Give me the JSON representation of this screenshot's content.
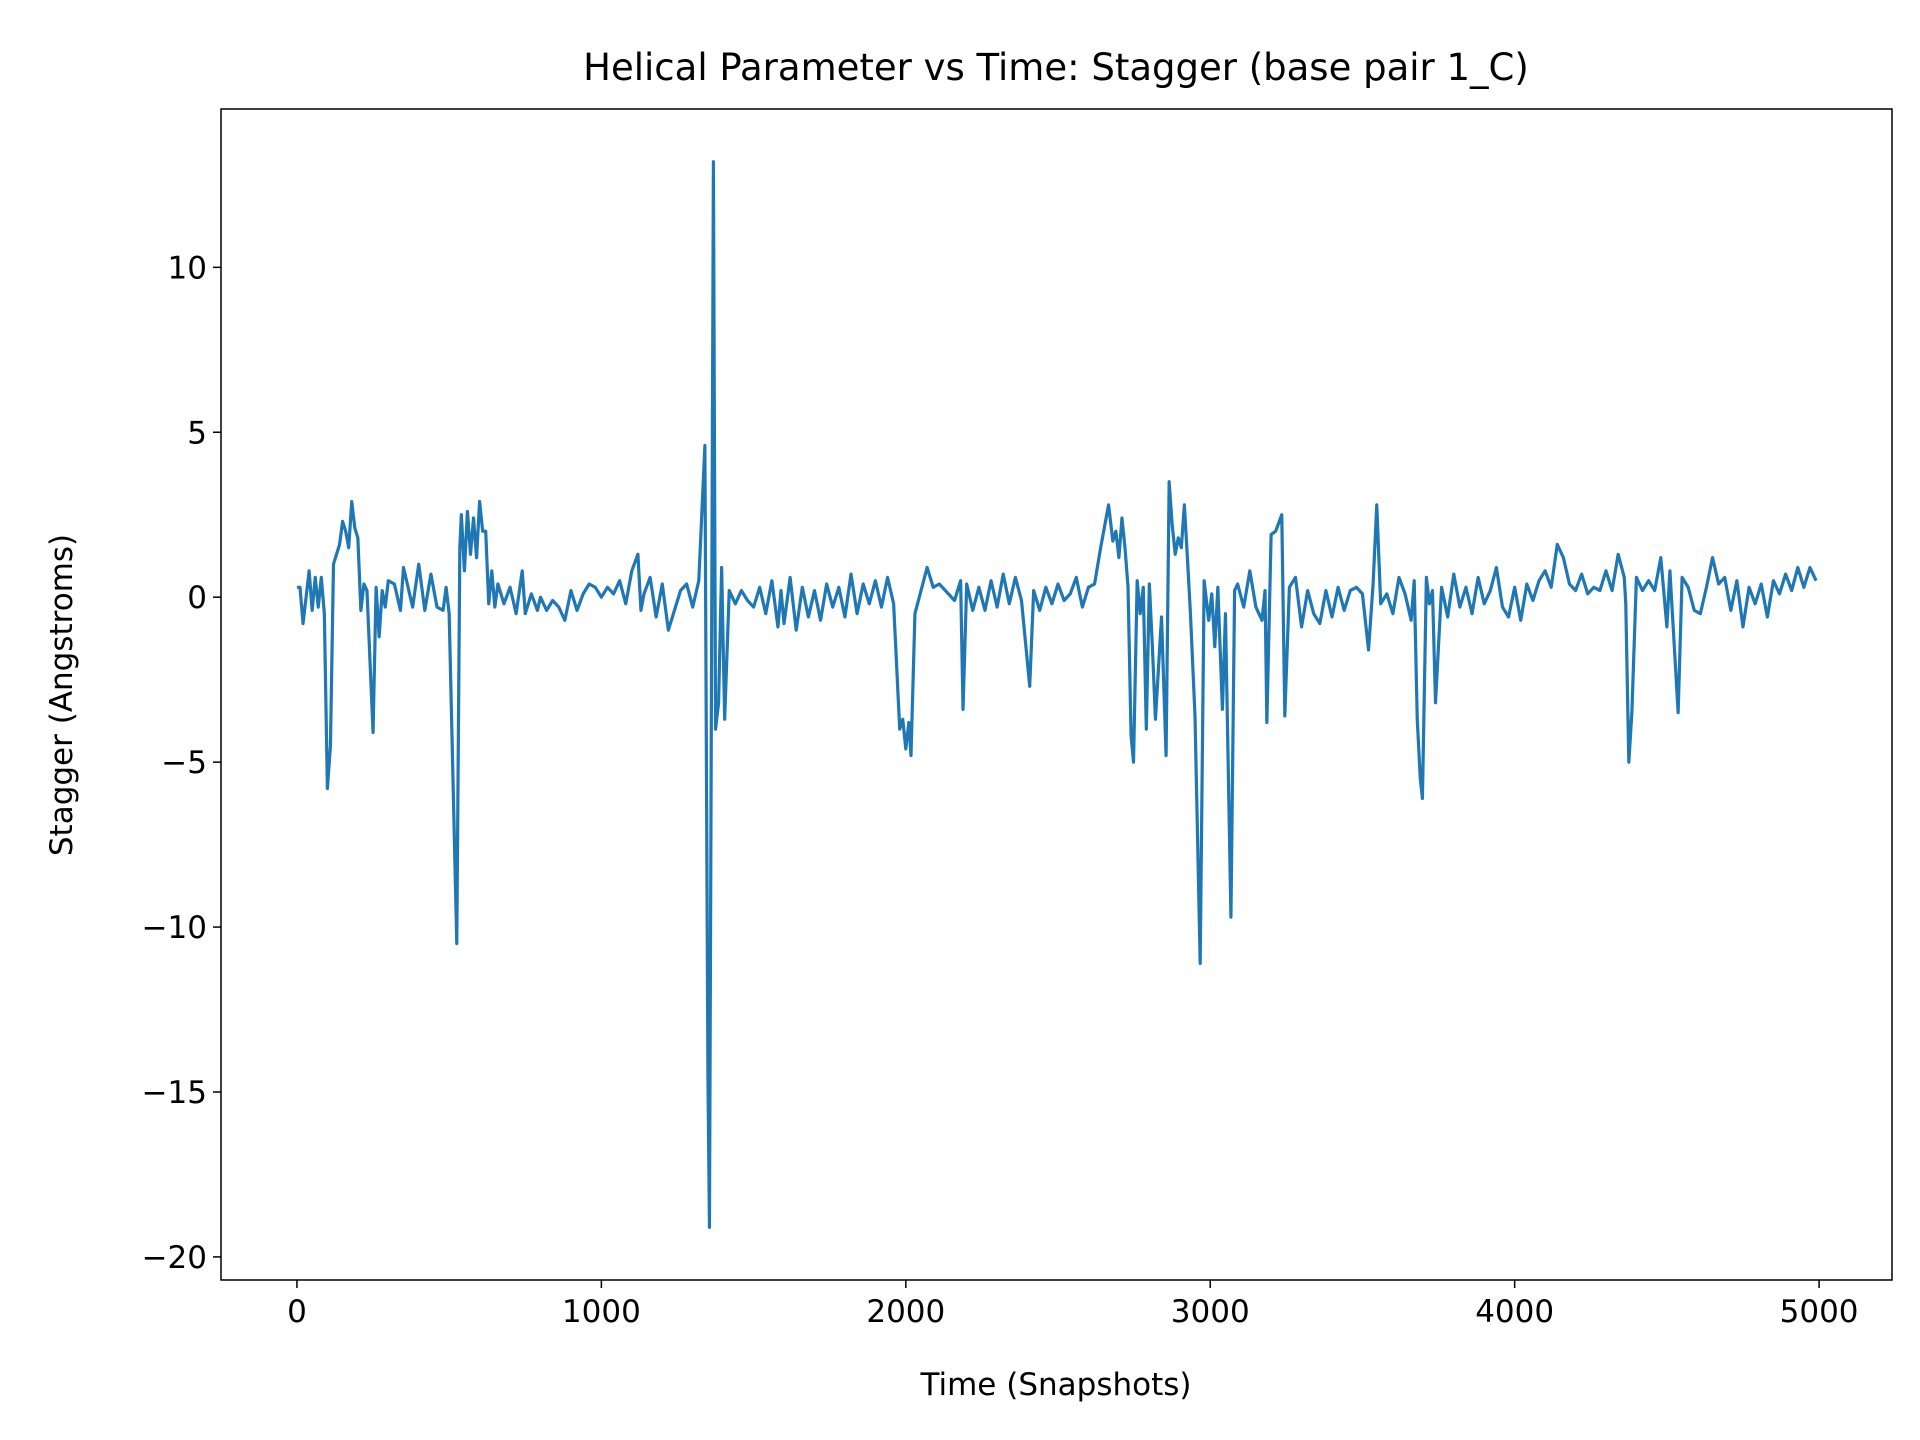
{
  "chart_data": {
    "type": "line",
    "title": "Helical Parameter vs Time: Stagger (base pair  1_C)",
    "x_label": "Time (Snapshots)",
    "y_label": "Stagger (Angstroms)",
    "color": "#1f77b4",
    "xlim": [
      -249.5,
      5239.5
    ],
    "ylim": [
      -20.7,
      14.8
    ],
    "xticks": [
      0,
      1000,
      2000,
      3000,
      4000,
      5000
    ],
    "yticks": [
      {
        "value": -20,
        "label": "−20"
      },
      {
        "value": -15,
        "label": "−15"
      },
      {
        "value": -10,
        "label": "−10"
      },
      {
        "value": -5,
        "label": "−5"
      },
      0,
      5,
      10
    ],
    "x": [
      0,
      10,
      20,
      30,
      40,
      50,
      60,
      70,
      80,
      90,
      100,
      110,
      120,
      140,
      150,
      160,
      170,
      180,
      190,
      200,
      210,
      220,
      230,
      250,
      260,
      270,
      280,
      290,
      300,
      320,
      340,
      350,
      360,
      380,
      400,
      420,
      440,
      460,
      480,
      490,
      500,
      525,
      535,
      540,
      550,
      560,
      570,
      580,
      590,
      600,
      610,
      620,
      630,
      640,
      650,
      660,
      680,
      700,
      720,
      740,
      750,
      770,
      790,
      800,
      820,
      840,
      860,
      880,
      900,
      920,
      940,
      960,
      980,
      1000,
      1020,
      1040,
      1060,
      1080,
      1100,
      1120,
      1130,
      1140,
      1160,
      1180,
      1200,
      1220,
      1240,
      1260,
      1280,
      1300,
      1320,
      1340,
      1350,
      1355,
      1368,
      1375,
      1385,
      1395,
      1405,
      1420,
      1440,
      1460,
      1480,
      1500,
      1520,
      1540,
      1560,
      1580,
      1590,
      1600,
      1620,
      1640,
      1660,
      1680,
      1700,
      1720,
      1740,
      1760,
      1780,
      1800,
      1820,
      1840,
      1860,
      1880,
      1900,
      1920,
      1940,
      1960,
      1980,
      1990,
      2000,
      2010,
      2017,
      2030,
      2050,
      2070,
      2090,
      2110,
      2130,
      2160,
      2180,
      2188,
      2200,
      2220,
      2240,
      2260,
      2280,
      2300,
      2320,
      2340,
      2360,
      2380,
      2407,
      2420,
      2440,
      2460,
      2480,
      2500,
      2520,
      2540,
      2560,
      2580,
      2600,
      2620,
      2640,
      2666,
      2680,
      2690,
      2700,
      2710,
      2720,
      2730,
      2740,
      2748,
      2760,
      2770,
      2780,
      2790,
      2800,
      2810,
      2820,
      2840,
      2855,
      2865,
      2875,
      2885,
      2895,
      2905,
      2915,
      2925,
      2935,
      2950,
      2967,
      2980,
      2995,
      3005,
      3015,
      3025,
      3040,
      3050,
      3068,
      3080,
      3090,
      3110,
      3130,
      3150,
      3170,
      3180,
      3186,
      3200,
      3215,
      3235,
      3245,
      3260,
      3280,
      3300,
      3320,
      3340,
      3360,
      3380,
      3400,
      3420,
      3440,
      3460,
      3480,
      3500,
      3520,
      3535,
      3547,
      3560,
      3580,
      3600,
      3620,
      3640,
      3660,
      3670,
      3680,
      3690,
      3697,
      3710,
      3720,
      3730,
      3740,
      3760,
      3780,
      3800,
      3820,
      3840,
      3860,
      3880,
      3900,
      3920,
      3940,
      3960,
      3980,
      4000,
      4020,
      4040,
      4060,
      4080,
      4100,
      4120,
      4140,
      4160,
      4180,
      4200,
      4220,
      4240,
      4260,
      4280,
      4300,
      4320,
      4340,
      4360,
      4365,
      4375,
      4385,
      4400,
      4420,
      4440,
      4460,
      4480,
      4500,
      4510,
      4537,
      4550,
      4570,
      4590,
      4610,
      4630,
      4650,
      4670,
      4690,
      4710,
      4730,
      4750,
      4770,
      4790,
      4810,
      4830,
      4850,
      4870,
      4890,
      4910,
      4930,
      4950,
      4970,
      4990
    ],
    "values": [
      0.3,
      0.3,
      -0.8,
      0,
      0.8,
      -0.4,
      0.6,
      -0.3,
      0.6,
      -0.5,
      -5.8,
      -4.5,
      1.0,
      1.6,
      2.3,
      2.0,
      1.5,
      2.9,
      2.1,
      1.8,
      -0.4,
      0.4,
      0.2,
      -4.1,
      0.3,
      -1.2,
      0.2,
      -0.3,
      0.5,
      0.4,
      -0.4,
      0.9,
      0.5,
      -0.3,
      1.0,
      -0.4,
      0.7,
      -0.3,
      -0.4,
      0.3,
      -0.5,
      -10.5,
      1.5,
      2.5,
      0.8,
      2.6,
      1.3,
      2.4,
      1.2,
      2.9,
      2.0,
      2.0,
      -0.2,
      0.8,
      -0.3,
      0.4,
      -0.2,
      0.3,
      -0.5,
      0.8,
      -0.5,
      0.1,
      -0.4,
      0,
      -0.4,
      -0.1,
      -0.3,
      -0.7,
      0.2,
      -0.4,
      0.1,
      0.4,
      0.3,
      0,
      0.3,
      0.1,
      0.5,
      -0.2,
      0.8,
      1.3,
      -0.4,
      0.1,
      0.6,
      -0.6,
      0.4,
      -1.0,
      -0.4,
      0.2,
      0.4,
      -0.3,
      0.5,
      4.6,
      -14.5,
      -19.1,
      13.2,
      -4,
      -3.2,
      0.9,
      -3.7,
      0.2,
      -0.2,
      0.2,
      -0.1,
      -0.3,
      0.3,
      -0.5,
      0.5,
      -0.9,
      0.2,
      -0.8,
      0.6,
      -1.0,
      0.3,
      -0.6,
      0.2,
      -0.7,
      0.4,
      -0.3,
      0.3,
      -0.6,
      0.7,
      -0.5,
      0.4,
      -0.2,
      0.5,
      -0.3,
      0.6,
      -0.2,
      -4.0,
      -3.7,
      -4.6,
      -3.8,
      -4.8,
      -0.5,
      0.2,
      0.9,
      0.3,
      0.4,
      0.2,
      -0.1,
      0.5,
      -3.4,
      0.4,
      -0.4,
      0.3,
      -0.4,
      0.5,
      -0.3,
      0.7,
      -0.2,
      0.6,
      -0.1,
      -2.7,
      0.2,
      -0.4,
      0.3,
      -0.2,
      0.4,
      -0.1,
      0.1,
      0.6,
      -0.3,
      0.3,
      0.4,
      1.5,
      2.8,
      1.7,
      2.0,
      1.2,
      2.4,
      1.5,
      0.3,
      -4.2,
      -5.0,
      0.5,
      -0.5,
      0.3,
      -4.0,
      0.4,
      -1.5,
      -3.7,
      -0.6,
      -4.8,
      3.5,
      2.2,
      1.3,
      1.8,
      1.5,
      2.8,
      1.2,
      -0.5,
      -3.6,
      -11.1,
      0.5,
      -0.7,
      0.1,
      -1.5,
      0.3,
      -3.4,
      -0.5,
      -9.7,
      0.2,
      0.4,
      -0.3,
      0.8,
      -0.3,
      -0.7,
      0.2,
      -3.8,
      1.9,
      2.0,
      2.5,
      -3.6,
      0.3,
      0.6,
      -0.9,
      0.2,
      -0.5,
      -0.8,
      0.2,
      -0.6,
      0.3,
      -0.4,
      0.2,
      0.3,
      0.1,
      -1.6,
      0.4,
      2.8,
      -0.2,
      0.1,
      -0.5,
      0.6,
      0.1,
      -0.7,
      0.5,
      -3.7,
      -5.5,
      -6.1,
      0.6,
      -0.2,
      0.2,
      -3.2,
      0.3,
      -0.6,
      0.7,
      -0.3,
      0.3,
      -0.5,
      0.6,
      -0.2,
      0.2,
      0.9,
      -0.3,
      -0.6,
      0.3,
      -0.7,
      0.4,
      -0.1,
      0.5,
      0.8,
      0.3,
      1.6,
      1.2,
      0.4,
      0.2,
      0.7,
      0.1,
      0.3,
      0.2,
      0.8,
      0.2,
      1.3,
      0.6,
      -0.2,
      -5.0,
      -3.5,
      0.6,
      0.2,
      0.5,
      0.2,
      1.2,
      -0.9,
      0.8,
      -3.5,
      0.6,
      0.3,
      -0.4,
      -0.5,
      0.3,
      1.2,
      0.4,
      0.6,
      -0.4,
      0.5,
      -0.9,
      0.3,
      -0.2,
      0.4,
      -0.6,
      0.5,
      0.1,
      0.7,
      0.2,
      0.9,
      0.3,
      0.9,
      0.5
    ]
  }
}
